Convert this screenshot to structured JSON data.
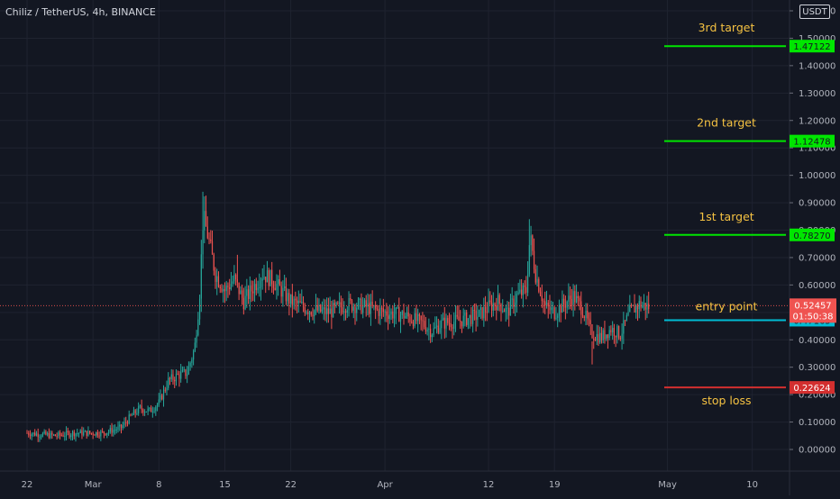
{
  "chart_title": "Chiliz / TetherUS, 4h, BINANCE",
  "currency": "USDT",
  "colors": {
    "background": "#131722",
    "grid": "#1f2330",
    "up": "#26a69a",
    "down": "#ef5350",
    "target": "#00e600",
    "entry": "#00bcd4",
    "stop": "#d32f2f",
    "annotation_text": "#f5c242",
    "axis_text": "#b2b5be"
  },
  "chart_data": {
    "type": "candlestick",
    "ylim": [
      -0.05,
      1.62
    ],
    "yticks": [
      1.6,
      1.5,
      1.4,
      1.3,
      1.2,
      1.1,
      1.0,
      0.9,
      0.8,
      0.7,
      0.6,
      0.5,
      0.4,
      0.3,
      0.2,
      0.1,
      0.0
    ],
    "ytick_labels": [
      "1.60000",
      "1.50000",
      "1.40000",
      "1.30000",
      "1.20000",
      "1.10000",
      "1.00000",
      "0.90000",
      "0.80000",
      "0.70000",
      "0.60000",
      "0.50000",
      "0.40000",
      "0.30000",
      "0.20000",
      "0.10000",
      "0.00000"
    ],
    "xticks": [
      {
        "label": "22",
        "day": 0
      },
      {
        "label": "Mar",
        "day": 7
      },
      {
        "label": "8",
        "day": 14
      },
      {
        "label": "15",
        "day": 21
      },
      {
        "label": "22",
        "day": 28
      },
      {
        "label": "Apr",
        "day": 38
      },
      {
        "label": "12",
        "day": 49
      },
      {
        "label": "19",
        "day": 56
      },
      {
        "label": "May",
        "day": 68
      },
      {
        "label": "10",
        "day": 77
      }
    ],
    "price_path": [
      [
        0,
        0.06
      ],
      [
        3,
        0.05
      ],
      [
        5,
        0.06
      ],
      [
        8,
        0.06
      ],
      [
        10,
        0.08
      ],
      [
        11,
        0.12
      ],
      [
        12,
        0.15
      ],
      [
        13,
        0.14
      ],
      [
        14,
        0.17
      ],
      [
        15,
        0.25
      ],
      [
        16,
        0.27
      ],
      [
        17,
        0.28
      ],
      [
        17.8,
        0.37
      ],
      [
        18.3,
        0.55
      ],
      [
        18.7,
        0.85
      ],
      [
        19.2,
        0.78
      ],
      [
        20,
        0.64
      ],
      [
        21,
        0.58
      ],
      [
        22,
        0.62
      ],
      [
        23,
        0.54
      ],
      [
        24,
        0.59
      ],
      [
        25,
        0.64
      ],
      [
        26,
        0.62
      ],
      [
        27,
        0.58
      ],
      [
        28,
        0.54
      ],
      [
        30,
        0.51
      ],
      [
        32,
        0.5
      ],
      [
        34,
        0.53
      ],
      [
        36,
        0.52
      ],
      [
        38,
        0.5
      ],
      [
        40,
        0.49
      ],
      [
        42,
        0.46
      ],
      [
        43,
        0.43
      ],
      [
        44,
        0.46
      ],
      [
        46,
        0.47
      ],
      [
        48,
        0.49
      ],
      [
        49,
        0.52
      ],
      [
        50,
        0.54
      ],
      [
        51,
        0.5
      ],
      [
        52,
        0.56
      ],
      [
        53,
        0.58
      ],
      [
        53.4,
        0.78
      ],
      [
        54,
        0.64
      ],
      [
        55,
        0.52
      ],
      [
        56,
        0.5
      ],
      [
        57,
        0.53
      ],
      [
        58,
        0.56
      ],
      [
        59,
        0.51
      ],
      [
        60,
        0.42
      ],
      [
        61,
        0.41
      ],
      [
        62,
        0.44
      ],
      [
        63,
        0.42
      ],
      [
        64,
        0.5
      ],
      [
        65,
        0.53
      ],
      [
        66,
        0.52
      ]
    ],
    "annotations": [
      {
        "name": "3rd target",
        "price": 1.47122,
        "price_label": "1.47122",
        "color": "target"
      },
      {
        "name": "2nd target",
        "price": 1.12478,
        "price_label": "1.12478",
        "color": "target"
      },
      {
        "name": "1st target",
        "price": 0.7827,
        "price_label": "0.78270",
        "color": "target"
      },
      {
        "name": "entry point",
        "price": 0.47165,
        "price_label": "0.47165",
        "color": "entry"
      },
      {
        "name": "stop loss",
        "price": 0.22624,
        "price_label": "0.22624",
        "color": "stop"
      }
    ],
    "last_price": {
      "price": 0.52457,
      "price_label": "0.52457",
      "countdown": "01:50:38"
    }
  }
}
